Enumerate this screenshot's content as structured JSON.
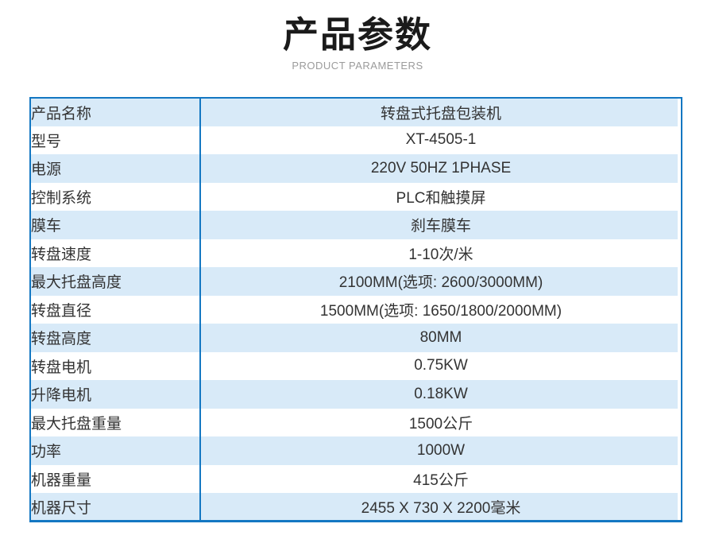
{
  "header": {
    "title": "产品参数",
    "subtitle": "PRODUCT PARAMETERS"
  },
  "table": {
    "rows": [
      {
        "label": "产品名称",
        "value": "转盘式托盘包装机"
      },
      {
        "label": "型号",
        "value": "XT-4505-1"
      },
      {
        "label": "电源",
        "value": "220V 50HZ 1PHASE"
      },
      {
        "label": "控制系统",
        "value": "PLC和触摸屏"
      },
      {
        "label": "膜车",
        "value": "刹车膜车"
      },
      {
        "label": "转盘速度",
        "value": "1-10次/米"
      },
      {
        "label": "最大托盘高度",
        "value": "2100MM(选项: 2600/3000MM)"
      },
      {
        "label": "转盘直径",
        "value": "1500MM(选项: 1650/1800/2000MM)"
      },
      {
        "label": "转盘高度",
        "value": "80MM"
      },
      {
        "label": "转盘电机",
        "value": "0.75KW"
      },
      {
        "label": "升降电机",
        "value": "0.18KW"
      },
      {
        "label": "最大托盘重量",
        "value": "1500公斤"
      },
      {
        "label": "功率",
        "value": "1000W"
      },
      {
        "label": "机器重量",
        "value": "415公斤"
      },
      {
        "label": "机器尺寸",
        "value": "2455 X 730 X 2200毫米"
      }
    ]
  },
  "colors": {
    "border_blue": "#1377c2",
    "row_highlight": "#d8eaf8",
    "row_alt": "#ffffff",
    "title": "#1a1a1a",
    "subtitle": "#9b9b9b",
    "cell_text": "#333333"
  }
}
